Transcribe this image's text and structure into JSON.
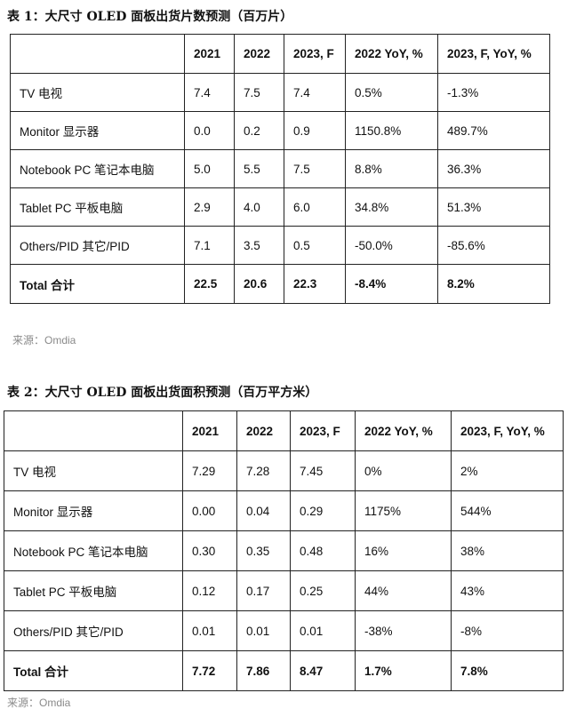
{
  "table1": {
    "caption": "表 1：大尺寸 OLED 面板出货片数预测（百万片）",
    "headers": [
      "",
      "2021",
      "2022",
      "2023, F",
      "2022 YoY, %",
      "2023, F, YoY, %"
    ],
    "rows": [
      [
        "TV 电视",
        "7.4",
        "7.5",
        "7.4",
        "0.5%",
        "-1.3%"
      ],
      [
        "Monitor 显示器",
        "0.0",
        "0.2",
        "0.9",
        "1150.8%",
        "489.7%"
      ],
      [
        "Notebook PC 笔记本电脑",
        "5.0",
        "5.5",
        "7.5",
        "8.8%",
        "36.3%"
      ],
      [
        "Tablet PC 平板电脑",
        "2.9",
        "4.0",
        "6.0",
        "34.8%",
        "51.3%"
      ],
      [
        "Others/PID 其它/PID",
        "7.1",
        "3.5",
        "0.5",
        "-50.0%",
        "-85.6%"
      ]
    ],
    "total": [
      "Total  合计",
      "22.5",
      "20.6",
      "22.3",
      "-8.4%",
      "8.2%"
    ],
    "source": "来源：Omdia"
  },
  "table2": {
    "caption": "表 2：大尺寸 OLED 面板出货面积预测（百万平方米）",
    "headers": [
      "",
      "2021",
      "2022",
      "2023, F",
      "2022 YoY, %",
      "2023, F, YoY, %"
    ],
    "rows": [
      [
        "TV 电视",
        "7.29",
        "7.28",
        "7.45",
        "0%",
        "2%"
      ],
      [
        "Monitor 显示器",
        "0.00",
        "0.04",
        "0.29",
        "1175%",
        "544%"
      ],
      [
        "Notebook PC 笔记本电脑",
        "0.30",
        "0.35",
        "0.48",
        "16%",
        "38%"
      ],
      [
        "Tablet PC 平板电脑",
        "0.12",
        "0.17",
        "0.25",
        "44%",
        "43%"
      ],
      [
        "Others/PID  其它/PID",
        "0.01",
        "0.01",
        "0.01",
        "-38%",
        "-8%"
      ]
    ],
    "total": [
      "Total  合计",
      "7.72",
      "7.86",
      "8.47",
      "1.7%",
      "7.8%"
    ],
    "source": "来源：Omdia"
  }
}
